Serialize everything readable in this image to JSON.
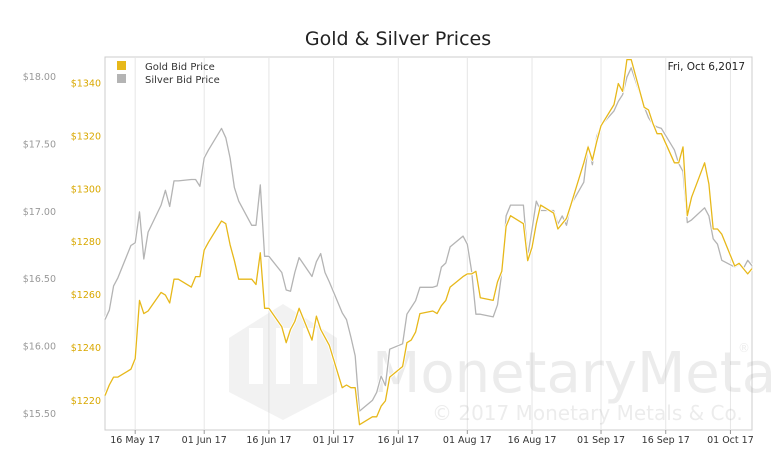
{
  "chart_data": {
    "type": "line",
    "title": "Gold & Silver Prices",
    "date_label": "Fri, Oct 6,2017",
    "x_ticks": [
      "16 May 17",
      "01 Jun 17",
      "16 Jun 17",
      "01 Jul 17",
      "16 Jul 17",
      "01 Aug 17",
      "16 Aug 17",
      "01 Sep 17",
      "16 Sep 17",
      "01 Oct 17"
    ],
    "x_range": [
      "2017-05-09",
      "2017-10-06"
    ],
    "gold_axis": {
      "ticks": [
        "$1220",
        "$1240",
        "$1260",
        "$1280",
        "$1300",
        "$1320",
        "$1340"
      ],
      "range": [
        1209,
        1350
      ],
      "color": "#d9a800"
    },
    "silver_axis": {
      "ticks": [
        "$15.50",
        "$16.00",
        "$16.50",
        "$17.00",
        "$17.50",
        "$18.00"
      ],
      "range": [
        15.38,
        18.15
      ],
      "color": "#999999"
    },
    "series": [
      {
        "name": "Gold Bid Price",
        "color": "#e7b81a",
        "points": [
          [
            "2017-05-09",
            1222
          ],
          [
            "2017-05-10",
            1226
          ],
          [
            "2017-05-11",
            1229
          ],
          [
            "2017-05-12",
            1229
          ],
          [
            "2017-05-15",
            1232
          ],
          [
            "2017-05-16",
            1236
          ],
          [
            "2017-05-17",
            1258
          ],
          [
            "2017-05-18",
            1253
          ],
          [
            "2017-05-19",
            1254
          ],
          [
            "2017-05-22",
            1261
          ],
          [
            "2017-05-23",
            1260
          ],
          [
            "2017-05-24",
            1257
          ],
          [
            "2017-05-25",
            1266
          ],
          [
            "2017-05-26",
            1266
          ],
          [
            "2017-05-29",
            1263
          ],
          [
            "2017-05-30",
            1267
          ],
          [
            "2017-05-31",
            1267
          ],
          [
            "2017-06-01",
            1277
          ],
          [
            "2017-06-02",
            1280
          ],
          [
            "2017-06-05",
            1288
          ],
          [
            "2017-06-06",
            1287
          ],
          [
            "2017-06-07",
            1279
          ],
          [
            "2017-06-08",
            1273
          ],
          [
            "2017-06-09",
            1266
          ],
          [
            "2017-06-12",
            1266
          ],
          [
            "2017-06-13",
            1264
          ],
          [
            "2017-06-14",
            1276
          ],
          [
            "2017-06-15",
            1255
          ],
          [
            "2017-06-16",
            1255
          ],
          [
            "2017-06-19",
            1248
          ],
          [
            "2017-06-20",
            1242
          ],
          [
            "2017-06-21",
            1247
          ],
          [
            "2017-06-22",
            1250
          ],
          [
            "2017-06-23",
            1255
          ],
          [
            "2017-06-26",
            1243
          ],
          [
            "2017-06-27",
            1252
          ],
          [
            "2017-06-28",
            1247
          ],
          [
            "2017-06-29",
            1244
          ],
          [
            "2017-06-30",
            1241
          ],
          [
            "2017-07-03",
            1225
          ],
          [
            "2017-07-04",
            1226
          ],
          [
            "2017-07-05",
            1225
          ],
          [
            "2017-07-06",
            1225
          ],
          [
            "2017-07-07",
            1211
          ],
          [
            "2017-07-10",
            1214
          ],
          [
            "2017-07-11",
            1214
          ],
          [
            "2017-07-12",
            1218
          ],
          [
            "2017-07-13",
            1220
          ],
          [
            "2017-07-14",
            1229
          ],
          [
            "2017-07-17",
            1233
          ],
          [
            "2017-07-18",
            1242
          ],
          [
            "2017-07-19",
            1243
          ],
          [
            "2017-07-20",
            1246
          ],
          [
            "2017-07-21",
            1253
          ],
          [
            "2017-07-24",
            1254
          ],
          [
            "2017-07-25",
            1253
          ],
          [
            "2017-07-26",
            1256
          ],
          [
            "2017-07-27",
            1258
          ],
          [
            "2017-07-28",
            1263
          ],
          [
            "2017-07-31",
            1267
          ],
          [
            "2017-08-01",
            1268
          ],
          [
            "2017-08-02",
            1268
          ],
          [
            "2017-08-03",
            1269
          ],
          [
            "2017-08-04",
            1259
          ],
          [
            "2017-08-07",
            1258
          ],
          [
            "2017-08-08",
            1265
          ],
          [
            "2017-08-09",
            1269
          ],
          [
            "2017-08-10",
            1286
          ],
          [
            "2017-08-11",
            1290
          ],
          [
            "2017-08-14",
            1287
          ],
          [
            "2017-08-15",
            1273
          ],
          [
            "2017-08-16",
            1278
          ],
          [
            "2017-08-17",
            1287
          ],
          [
            "2017-08-18",
            1294
          ],
          [
            "2017-08-21",
            1291
          ],
          [
            "2017-08-22",
            1285
          ],
          [
            "2017-08-23",
            1287
          ],
          [
            "2017-08-24",
            1289
          ],
          [
            "2017-08-25",
            1294
          ],
          [
            "2017-08-28",
            1310
          ],
          [
            "2017-08-29",
            1316
          ],
          [
            "2017-08-30",
            1311
          ],
          [
            "2017-08-31",
            1318
          ],
          [
            "2017-09-01",
            1324
          ],
          [
            "2017-09-04",
            1332
          ],
          [
            "2017-09-05",
            1340
          ],
          [
            "2017-09-06",
            1337
          ],
          [
            "2017-09-07",
            1349
          ],
          [
            "2017-09-08",
            1349
          ],
          [
            "2017-09-11",
            1331
          ],
          [
            "2017-09-12",
            1330
          ],
          [
            "2017-09-13",
            1325
          ],
          [
            "2017-09-14",
            1321
          ],
          [
            "2017-09-15",
            1321
          ],
          [
            "2017-09-18",
            1310
          ],
          [
            "2017-09-19",
            1310
          ],
          [
            "2017-09-20",
            1316
          ],
          [
            "2017-09-21",
            1290
          ],
          [
            "2017-09-22",
            1297
          ],
          [
            "2017-09-25",
            1310
          ],
          [
            "2017-09-26",
            1302
          ],
          [
            "2017-09-27",
            1285
          ],
          [
            "2017-09-28",
            1285
          ],
          [
            "2017-09-29",
            1283
          ],
          [
            "2017-10-02",
            1271
          ],
          [
            "2017-10-03",
            1272
          ],
          [
            "2017-10-04",
            1270
          ],
          [
            "2017-10-05",
            1268
          ],
          [
            "2017-10-06",
            1270
          ]
        ]
      },
      {
        "name": "Silver Bid Price",
        "color": "#b4b4b4",
        "points": [
          [
            "2017-05-09",
            16.2
          ],
          [
            "2017-05-10",
            16.27
          ],
          [
            "2017-05-11",
            16.45
          ],
          [
            "2017-05-12",
            16.51
          ],
          [
            "2017-05-15",
            16.75
          ],
          [
            "2017-05-16",
            16.77
          ],
          [
            "2017-05-17",
            17.0
          ],
          [
            "2017-05-18",
            16.65
          ],
          [
            "2017-05-19",
            16.85
          ],
          [
            "2017-05-22",
            17.05
          ],
          [
            "2017-05-23",
            17.16
          ],
          [
            "2017-05-24",
            17.04
          ],
          [
            "2017-05-25",
            17.23
          ],
          [
            "2017-05-26",
            17.23
          ],
          [
            "2017-05-29",
            17.24
          ],
          [
            "2017-05-30",
            17.24
          ],
          [
            "2017-05-31",
            17.19
          ],
          [
            "2017-06-01",
            17.4
          ],
          [
            "2017-06-02",
            17.46
          ],
          [
            "2017-06-05",
            17.62
          ],
          [
            "2017-06-06",
            17.55
          ],
          [
            "2017-06-07",
            17.4
          ],
          [
            "2017-06-08",
            17.18
          ],
          [
            "2017-06-09",
            17.08
          ],
          [
            "2017-06-12",
            16.9
          ],
          [
            "2017-06-13",
            16.9
          ],
          [
            "2017-06-14",
            17.2
          ],
          [
            "2017-06-15",
            16.67
          ],
          [
            "2017-06-16",
            16.67
          ],
          [
            "2017-06-19",
            16.55
          ],
          [
            "2017-06-20",
            16.42
          ],
          [
            "2017-06-21",
            16.41
          ],
          [
            "2017-06-22",
            16.55
          ],
          [
            "2017-06-23",
            16.66
          ],
          [
            "2017-06-26",
            16.52
          ],
          [
            "2017-06-27",
            16.63
          ],
          [
            "2017-06-28",
            16.69
          ],
          [
            "2017-06-29",
            16.55
          ],
          [
            "2017-06-30",
            16.48
          ],
          [
            "2017-07-03",
            16.25
          ],
          [
            "2017-07-04",
            16.2
          ],
          [
            "2017-07-05",
            16.07
          ],
          [
            "2017-07-06",
            15.93
          ],
          [
            "2017-07-07",
            15.52
          ],
          [
            "2017-07-10",
            15.6
          ],
          [
            "2017-07-11",
            15.66
          ],
          [
            "2017-07-12",
            15.78
          ],
          [
            "2017-07-13",
            15.71
          ],
          [
            "2017-07-14",
            15.98
          ],
          [
            "2017-07-17",
            16.02
          ],
          [
            "2017-07-18",
            16.24
          ],
          [
            "2017-07-19",
            16.29
          ],
          [
            "2017-07-20",
            16.34
          ],
          [
            "2017-07-21",
            16.44
          ],
          [
            "2017-07-24",
            16.44
          ],
          [
            "2017-07-25",
            16.45
          ],
          [
            "2017-07-26",
            16.59
          ],
          [
            "2017-07-27",
            16.62
          ],
          [
            "2017-07-28",
            16.74
          ],
          [
            "2017-07-31",
            16.82
          ],
          [
            "2017-08-01",
            16.76
          ],
          [
            "2017-08-02",
            16.56
          ],
          [
            "2017-08-03",
            16.24
          ],
          [
            "2017-08-04",
            16.24
          ],
          [
            "2017-08-07",
            16.22
          ],
          [
            "2017-08-08",
            16.31
          ],
          [
            "2017-08-09",
            16.55
          ],
          [
            "2017-08-10",
            16.97
          ],
          [
            "2017-08-11",
            17.05
          ],
          [
            "2017-08-14",
            17.05
          ],
          [
            "2017-08-15",
            16.67
          ],
          [
            "2017-08-16",
            16.87
          ],
          [
            "2017-08-17",
            17.08
          ],
          [
            "2017-08-18",
            17.01
          ],
          [
            "2017-08-21",
            17.01
          ],
          [
            "2017-08-22",
            16.91
          ],
          [
            "2017-08-23",
            16.97
          ],
          [
            "2017-08-24",
            16.9
          ],
          [
            "2017-08-25",
            17.05
          ],
          [
            "2017-08-28",
            17.22
          ],
          [
            "2017-08-29",
            17.49
          ],
          [
            "2017-08-30",
            17.35
          ],
          [
            "2017-08-31",
            17.56
          ],
          [
            "2017-09-01",
            17.64
          ],
          [
            "2017-09-04",
            17.75
          ],
          [
            "2017-09-05",
            17.82
          ],
          [
            "2017-09-06",
            17.87
          ],
          [
            "2017-09-07",
            18.0
          ],
          [
            "2017-09-08",
            18.07
          ],
          [
            "2017-09-11",
            17.78
          ],
          [
            "2017-09-12",
            17.7
          ],
          [
            "2017-09-13",
            17.65
          ],
          [
            "2017-09-14",
            17.63
          ],
          [
            "2017-09-15",
            17.62
          ],
          [
            "2017-09-18",
            17.46
          ],
          [
            "2017-09-19",
            17.36
          ],
          [
            "2017-09-20",
            17.3
          ],
          [
            "2017-09-21",
            16.92
          ],
          [
            "2017-09-22",
            16.94
          ],
          [
            "2017-09-25",
            17.03
          ],
          [
            "2017-09-26",
            16.97
          ],
          [
            "2017-09-27",
            16.8
          ],
          [
            "2017-09-28",
            16.76
          ],
          [
            "2017-09-29",
            16.64
          ],
          [
            "2017-10-02",
            16.59
          ],
          [
            "2017-10-03",
            16.61
          ],
          [
            "2017-10-04",
            16.58
          ],
          [
            "2017-10-05",
            16.64
          ],
          [
            "2017-10-06",
            16.6
          ]
        ]
      }
    ],
    "legend_position": "top-left",
    "grid": "vertical"
  },
  "watermark": {
    "brand": "MonetaryMetals",
    "registered": "®",
    "copyright": "© 2017 Monetary Metals & Co."
  }
}
